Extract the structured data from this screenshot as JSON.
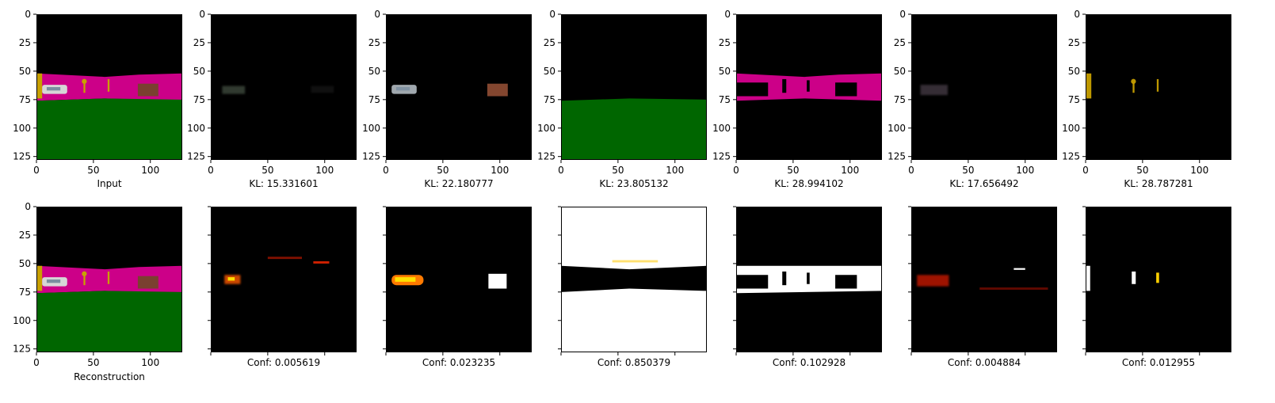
{
  "figure": {
    "top_row_captions": [
      "Input",
      "KL: 15.331601",
      "KL: 22.180777",
      "KL: 23.805132",
      "KL: 28.994102",
      "KL: 17.656492",
      "KL: 28.787281"
    ],
    "bottom_row_captions": [
      "Reconstruction",
      "Conf: 0.005619",
      "Conf: 0.023235",
      "Conf: 0.850379",
      "Conf: 0.102928",
      "Conf: 0.004884",
      "Conf: 0.012955"
    ]
  },
  "chart_data": {
    "type": "heatmap",
    "grid": false,
    "image_size": [
      128,
      128
    ],
    "x_ticks": [
      0,
      50,
      100
    ],
    "y_ticks": [
      0,
      25,
      50,
      75,
      100,
      125
    ],
    "xlim": [
      0,
      128
    ],
    "ylim": [
      128,
      0
    ],
    "colormap": "hot",
    "colors": {
      "sky": "#000000",
      "wall": "#cc0088",
      "floor": "#006600",
      "key": "#c8a000",
      "car": "#d6d6d6",
      "box": "#7a4030"
    },
    "panels_top": [
      {
        "caption": "Input",
        "kind": "scene"
      },
      {
        "caption": "KL: 15.331601",
        "kl": 15.331601,
        "kind": "slot"
      },
      {
        "caption": "KL: 22.180777",
        "kl": 22.180777,
        "kind": "slot"
      },
      {
        "caption": "KL: 23.805132",
        "kl": 23.805132,
        "kind": "slot"
      },
      {
        "caption": "KL: 28.994102",
        "kl": 28.994102,
        "kind": "slot"
      },
      {
        "caption": "KL: 17.656492",
        "kl": 17.656492,
        "kind": "slot"
      },
      {
        "caption": "KL: 28.787281",
        "kl": 28.787281,
        "kind": "slot"
      }
    ],
    "panels_bottom": [
      {
        "caption": "Reconstruction",
        "kind": "scene"
      },
      {
        "caption": "Conf: 0.005619",
        "conf": 0.005619,
        "kind": "mask"
      },
      {
        "caption": "Conf: 0.023235",
        "conf": 0.023235,
        "kind": "mask"
      },
      {
        "caption": "Conf: 0.850379",
        "conf": 0.850379,
        "kind": "mask"
      },
      {
        "caption": "Conf: 0.102928",
        "conf": 0.102928,
        "kind": "mask"
      },
      {
        "caption": "Conf: 0.004884",
        "conf": 0.004884,
        "kind": "mask"
      },
      {
        "caption": "Conf: 0.012955",
        "conf": 0.012955,
        "kind": "mask"
      }
    ]
  }
}
